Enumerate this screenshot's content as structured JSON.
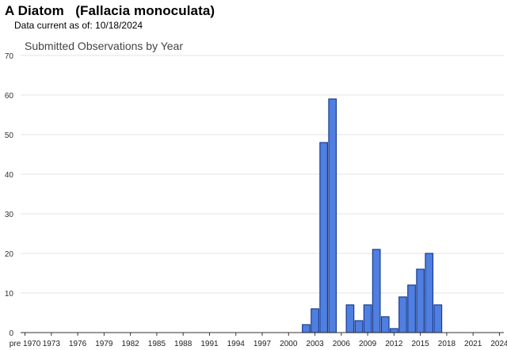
{
  "header": {
    "title": "A Diatom   (Fallacia monoculata)",
    "subtitle": "Data current as of: 10/18/2024"
  },
  "colors": {
    "bar_fill": "#4f7fe0",
    "bar_stroke": "#1a3c8f",
    "grid": "#e3e3e3",
    "axis": "#333333"
  },
  "chart_data": {
    "type": "bar",
    "title": "Submitted Observations by Year",
    "xlabel": "",
    "ylabel": "",
    "ylim": [
      0,
      70
    ],
    "yticks": [
      0,
      10,
      20,
      30,
      40,
      50,
      60,
      70
    ],
    "grid": true,
    "categories": [
      "pre 1970",
      "1971",
      "1972",
      "1973",
      "1974",
      "1975",
      "1976",
      "1977",
      "1978",
      "1979",
      "1980",
      "1981",
      "1982",
      "1983",
      "1984",
      "1985",
      "1986",
      "1987",
      "1988",
      "1989",
      "1990",
      "1991",
      "1992",
      "1993",
      "1994",
      "1995",
      "1996",
      "1997",
      "1998",
      "1999",
      "2000",
      "2001",
      "2002",
      "2003",
      "2004",
      "2005",
      "2006",
      "2007",
      "2008",
      "2009",
      "2010",
      "2011",
      "2012",
      "2013",
      "2014",
      "2015",
      "2016",
      "2017",
      "2018",
      "2019",
      "2020",
      "2021",
      "2022",
      "2023",
      "2024"
    ],
    "x_tick_labels": [
      "pre 1970",
      "1973",
      "1976",
      "1979",
      "1982",
      "1985",
      "1988",
      "1991",
      "1994",
      "1997",
      "2000",
      "2003",
      "2006",
      "2009",
      "2012",
      "2015",
      "2018",
      "2021",
      "2024"
    ],
    "values": [
      0,
      0,
      0,
      0,
      0,
      0,
      0,
      0,
      0,
      0,
      0,
      0,
      0,
      0,
      0,
      0,
      0,
      0,
      0,
      0,
      0,
      0,
      0,
      0,
      0,
      0,
      0,
      0,
      0,
      0,
      0,
      0,
      2,
      6,
      48,
      59,
      0,
      7,
      3,
      7,
      21,
      4,
      1,
      9,
      12,
      16,
      20,
      7,
      0,
      0,
      0,
      0,
      0,
      0,
      0
    ]
  }
}
